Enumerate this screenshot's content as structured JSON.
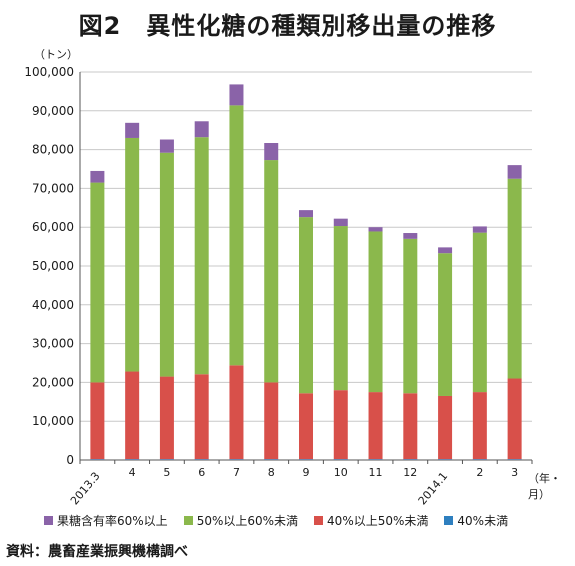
{
  "title": "図2　異性化糖の種類別移出量の推移",
  "y_unit_label": "（トン）",
  "x_unit_label": "（年・月）",
  "source": "資料：農畜産業振興機構調べ",
  "colors": {
    "fructose60plus": "#8a63a8",
    "fructose50to60": "#8bb84c",
    "fructose40to50": "#d8504a",
    "fructose_under40": "#2e7fbf",
    "grid": "#c8c8c8",
    "axis": "#555555"
  },
  "chart_data": {
    "type": "bar",
    "stacked": true,
    "categories": [
      "2013.3",
      "4",
      "5",
      "6",
      "7",
      "8",
      "9",
      "10",
      "11",
      "12",
      "2014.1",
      "2",
      "3"
    ],
    "ylim": [
      0,
      100000
    ],
    "yticks": [
      0,
      10000,
      20000,
      30000,
      40000,
      50000,
      60000,
      70000,
      80000,
      90000,
      100000
    ],
    "ytick_labels": [
      "0",
      "10,000",
      "20,000",
      "30,000",
      "40,000",
      "50,000",
      "60,000",
      "70,000",
      "80,000",
      "90,000",
      "100,000"
    ],
    "grid": true,
    "legend_position": "bottom",
    "series": [
      {
        "name": "40%未満",
        "color_key": "fructose_under40",
        "values": [
          200,
          200,
          200,
          200,
          200,
          200,
          200,
          200,
          200,
          200,
          200,
          200,
          200
        ]
      },
      {
        "name": "40%以上50%未満",
        "color_key": "fructose40to50",
        "values": [
          19800,
          22600,
          21300,
          21900,
          24200,
          19800,
          17000,
          17800,
          17300,
          17000,
          16300,
          17300,
          20800
        ]
      },
      {
        "name": "50%以上60%未満",
        "color_key": "fructose50to60",
        "values": [
          51500,
          60200,
          57700,
          61100,
          67000,
          57300,
          45400,
          42300,
          41400,
          39800,
          36800,
          41100,
          51500
        ]
      },
      {
        "name": "果糖含有率60%以上",
        "color_key": "fructose60plus",
        "values": [
          3000,
          3900,
          3400,
          4100,
          5400,
          4400,
          1800,
          1900,
          1100,
          1500,
          1500,
          1600,
          3500
        ]
      }
    ],
    "legend_order": [
      "果糖含有率60%以上",
      "50%以上60%未満",
      "40%以上50%未満",
      "40%未満"
    ]
  }
}
